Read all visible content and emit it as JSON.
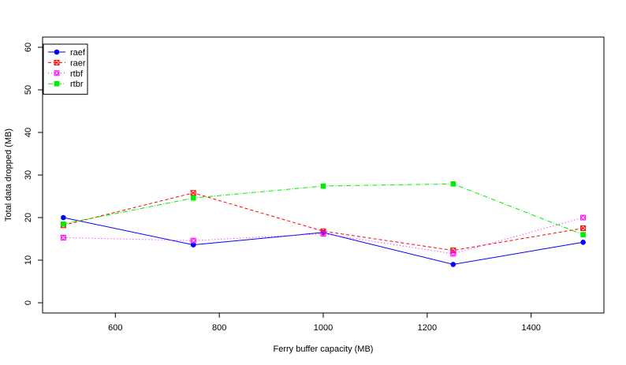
{
  "chart_data": {
    "type": "line",
    "title": "",
    "xlabel": "Ferry buffer capacity (MB)",
    "ylabel": "Total data dropped (MB)",
    "x": [
      500,
      750,
      1000,
      1250,
      1500
    ],
    "xlim": [
      460,
      1540
    ],
    "ylim": [
      -2.4,
      62.4
    ],
    "xticks": [
      600,
      800,
      1000,
      1200,
      1400
    ],
    "yticks": [
      0,
      10,
      20,
      30,
      40,
      50,
      60
    ],
    "grid": false,
    "legend_position": "top-left",
    "series": [
      {
        "name": "raef",
        "values": [
          20.0,
          13.6,
          16.5,
          9.0,
          14.2
        ],
        "color": "#0000ff",
        "dash": "",
        "marker": "circle"
      },
      {
        "name": "raer",
        "values": [
          18.2,
          25.8,
          16.8,
          12.3,
          17.5
        ],
        "color": "#ff0000",
        "dash": "4,3",
        "marker": "square-x"
      },
      {
        "name": "rtbf",
        "values": [
          15.3,
          14.6,
          16.2,
          11.5,
          20.0
        ],
        "color": "#ff00ff",
        "dash": "1,3",
        "marker": "square-circle"
      },
      {
        "name": "rtbr",
        "values": [
          18.5,
          24.6,
          27.4,
          27.9,
          16.0
        ],
        "color": "#00ee00",
        "dash": "6,2,1,2",
        "marker": "square"
      }
    ]
  }
}
